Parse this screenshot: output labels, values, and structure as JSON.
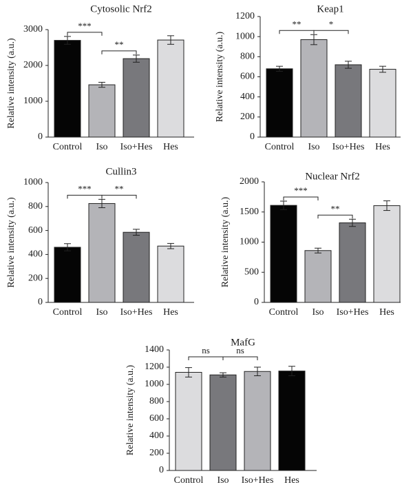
{
  "chart_data": [
    {
      "type": "bar",
      "title": "Cytosolic Nrf2",
      "ylabel": "Relative intensity (a.u.)",
      "categories": [
        "Control",
        "Iso",
        "Iso+Hes",
        "Hes"
      ],
      "values": [
        2700,
        1460,
        2190,
        2710
      ],
      "errors": [
        110,
        70,
        100,
        120
      ],
      "colors": [
        "#050505",
        "#b4b4b8",
        "#78787c",
        "#dcdcde"
      ],
      "ylim": [
        0,
        3000
      ],
      "yticks": [
        0,
        1000,
        2000,
        3000
      ],
      "significance": [
        {
          "from": 0,
          "to": 1,
          "label": "***"
        },
        {
          "from": 1,
          "to": 2,
          "label": "**"
        }
      ]
    },
    {
      "type": "bar",
      "title": "Keap1",
      "ylabel": "Relative intensity (a.u.)",
      "categories": [
        "Control",
        "Iso",
        "Iso+Hes",
        "Hes"
      ],
      "values": [
        680,
        970,
        720,
        675
      ],
      "errors": [
        25,
        50,
        35,
        30
      ],
      "colors": [
        "#050505",
        "#b4b4b8",
        "#78787c",
        "#dcdcde"
      ],
      "ylim": [
        0,
        1200
      ],
      "yticks": [
        0,
        200,
        400,
        600,
        800,
        1000,
        1200
      ],
      "significance": [
        {
          "from": 0,
          "to": 1,
          "label": "**"
        },
        {
          "from": 1,
          "to": 2,
          "label": "*"
        }
      ]
    },
    {
      "type": "bar",
      "title": "Cullin3",
      "ylabel": "Relative intensity (a.u.)",
      "categories": [
        "Control",
        "Iso",
        "Iso+Hes",
        "Hes"
      ],
      "values": [
        460,
        825,
        585,
        470
      ],
      "errors": [
        30,
        35,
        25,
        22
      ],
      "colors": [
        "#050505",
        "#b4b4b8",
        "#78787c",
        "#dcdcde"
      ],
      "ylim": [
        0,
        1000
      ],
      "yticks": [
        0,
        200,
        400,
        600,
        800,
        1000
      ],
      "significance": [
        {
          "from": 0,
          "to": 1,
          "label": "***"
        },
        {
          "from": 1,
          "to": 2,
          "label": "**"
        }
      ]
    },
    {
      "type": "bar",
      "title": "Nuclear Nrf2",
      "ylabel": "Relative intensity (a.u.)",
      "categories": [
        "Control",
        "Iso",
        "Iso+Hes",
        "Hes"
      ],
      "values": [
        1610,
        860,
        1320,
        1605
      ],
      "errors": [
        70,
        40,
        60,
        80
      ],
      "colors": [
        "#050505",
        "#b4b4b8",
        "#78787c",
        "#dcdcde"
      ],
      "ylim": [
        0,
        2000
      ],
      "yticks": [
        0,
        500,
        1000,
        1500,
        2000
      ],
      "significance": [
        {
          "from": 0,
          "to": 1,
          "label": "***"
        },
        {
          "from": 1,
          "to": 2,
          "label": "**"
        }
      ]
    },
    {
      "type": "bar",
      "title": "MafG",
      "ylabel": "Relative intensity (a.u.)",
      "categories": [
        "Control",
        "Iso",
        "Iso+Hes",
        "Hes"
      ],
      "values": [
        1140,
        1110,
        1150,
        1155
      ],
      "errors": [
        55,
        25,
        50,
        55
      ],
      "colors": [
        "#dcdcde",
        "#78787c",
        "#b4b4b8",
        "#050505"
      ],
      "ylim": [
        0,
        1400
      ],
      "yticks": [
        0,
        200,
        400,
        600,
        800,
        1000,
        1200,
        1400
      ],
      "significance": [
        {
          "from": 0,
          "to": 1,
          "label": "ns"
        },
        {
          "from": 1,
          "to": 2,
          "label": "ns"
        }
      ]
    }
  ]
}
